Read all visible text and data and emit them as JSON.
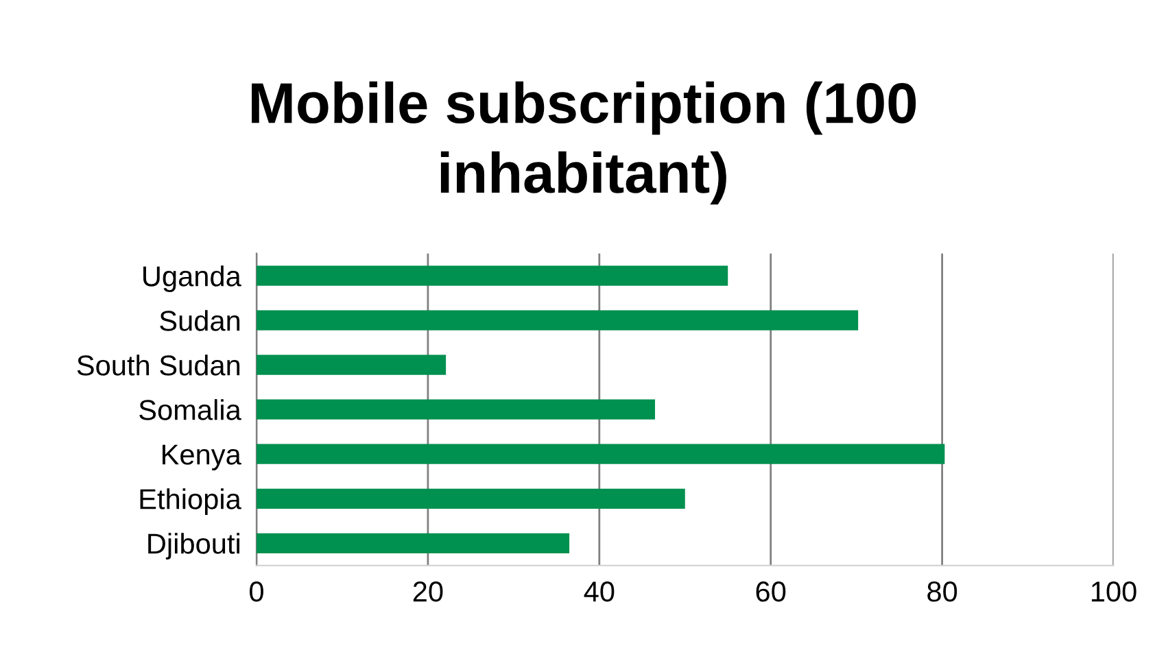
{
  "chart_data": {
    "type": "bar",
    "orientation": "horizontal",
    "title": "Mobile subscription (100\ninhabitant)",
    "categories": [
      "Uganda",
      "Sudan",
      "South Sudan",
      "Somalia",
      "Kenya",
      "Ethiopia",
      "Djibouti"
    ],
    "values": [
      55.0,
      70.2,
      22.1,
      46.5,
      80.3,
      50.0,
      36.5
    ],
    "color": "#00904f",
    "xlim": [
      0,
      100
    ],
    "xticks": [
      0,
      20,
      40,
      60,
      80,
      100
    ],
    "grid": "x"
  }
}
